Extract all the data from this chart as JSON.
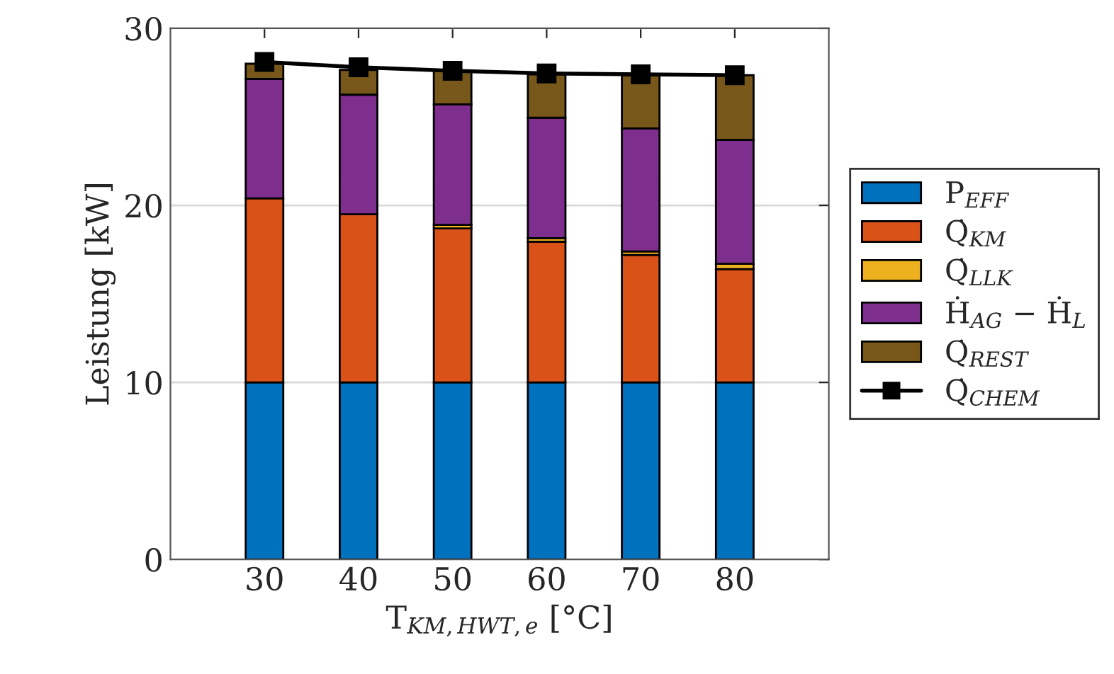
{
  "chart_data": {
    "type": "bar",
    "stacked": true,
    "xlabel": "T$_{KM,HWT,e}$ [°C]",
    "ylabel": "Leistung [kW]",
    "categories": [
      "30",
      "40",
      "50",
      "60",
      "70",
      "80"
    ],
    "series": [
      {
        "name": "P$_{EFF}$",
        "color": "#0072bd",
        "values": [
          10,
          10,
          10,
          10,
          10,
          10
        ]
      },
      {
        "name": "Q̇$_{KM}$",
        "color": "#d95319",
        "values": [
          10.4,
          9.5,
          8.7,
          7.95,
          7.2,
          6.4
        ]
      },
      {
        "name": "Q̇$_{LLK}$",
        "color": "#edb120",
        "values": [
          null,
          null,
          0.2,
          0.2,
          0.2,
          0.3
        ]
      },
      {
        "name": "Ḣ$_{AG}$ − Ḣ$_{L}$",
        "color": "#7e2f8e",
        "values": [
          6.74,
          6.75,
          6.8,
          6.8,
          6.95,
          7.0
        ]
      },
      {
        "name": "Q̇$_{REST}$",
        "color": "#77581a",
        "values": [
          0.86,
          1.4,
          1.9,
          2.45,
          3.0,
          3.65
        ]
      },
      {
        "name": "Q̇$_{CHEM}$",
        "type": "line",
        "color": "#000000",
        "marker": "square",
        "values": [
          28.1,
          27.8,
          27.6,
          27.45,
          27.4,
          27.35
        ]
      }
    ],
    "ylim": [
      0,
      30
    ],
    "yticks": [
      0,
      10,
      20,
      30
    ],
    "grid": "y",
    "legend": "right"
  }
}
